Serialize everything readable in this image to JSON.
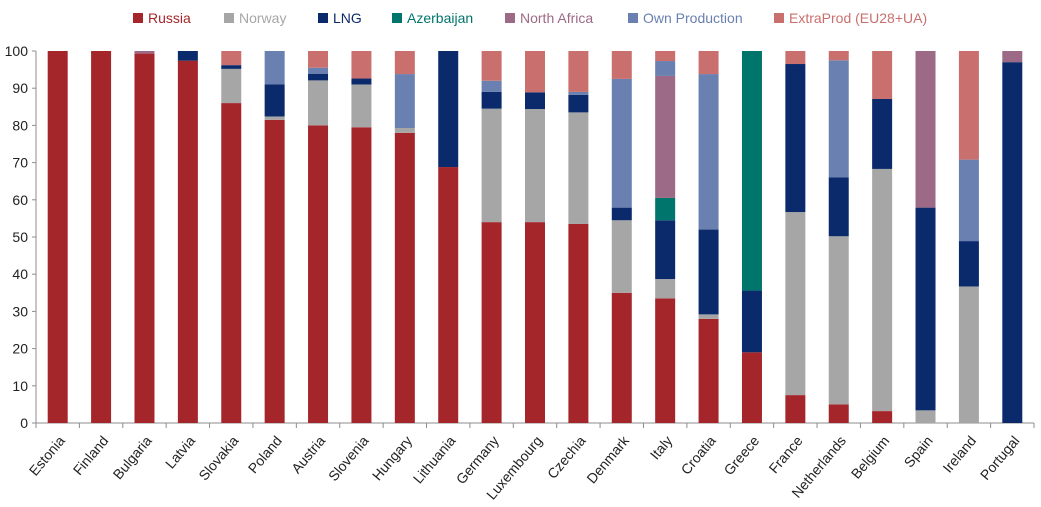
{
  "chart_data": {
    "type": "bar",
    "stacked": true,
    "title": "",
    "xlabel": "",
    "ylabel": "",
    "ylim": [
      0,
      100
    ],
    "y_ticks": [
      0,
      10,
      20,
      30,
      40,
      50,
      60,
      70,
      80,
      90,
      100
    ],
    "grid": false,
    "legend_position": "top",
    "categories": [
      "Estonia",
      "Finland",
      "Bulgaria",
      "Latvia",
      "Slovakia",
      "Poland",
      "Austria",
      "Slovenia",
      "Hungary",
      "Lithuania",
      "Germany",
      "Luxembourg",
      "Czechia",
      "Denmark",
      "Italy",
      "Croatia",
      "Greece",
      "France",
      "Netherlands",
      "Belgium",
      "Spain",
      "Ireland",
      "Portugal"
    ],
    "series": [
      {
        "name": "Russia",
        "color": "#A5262A",
        "values": [
          100,
          100,
          99.3,
          97.4,
          86.0,
          81.5,
          80.0,
          79.5,
          78.0,
          68.8,
          54.0,
          54.0,
          53.5,
          35.0,
          33.5,
          28.0,
          19.0,
          7.5,
          5.0,
          3.2,
          0,
          0,
          0
        ]
      },
      {
        "name": "Norway",
        "color": "#A6A6A6",
        "values": [
          0,
          0,
          0,
          0,
          9.2,
          0.9,
          12.1,
          11.5,
          1.3,
          0,
          30.5,
          30.4,
          30.0,
          19.5,
          5.2,
          1.2,
          0,
          49.2,
          45.2,
          65.1,
          3.4,
          36.7,
          0
        ]
      },
      {
        "name": "LNG",
        "color": "#0B2A6B",
        "values": [
          0,
          0,
          0,
          2.6,
          1.0,
          8.6,
          1.8,
          1.6,
          0,
          31.2,
          4.5,
          4.5,
          4.7,
          3.4,
          15.8,
          22.8,
          16.6,
          39.8,
          15.8,
          18.8,
          54.5,
          12.2,
          97.0
        ]
      },
      {
        "name": "Azerbaijan",
        "color": "#00756C",
        "values": [
          0,
          0,
          0,
          0,
          0,
          0,
          0,
          0,
          0,
          0,
          0,
          0,
          0,
          0,
          6.0,
          0,
          64.4,
          0,
          0,
          0,
          0,
          0,
          0
        ]
      },
      {
        "name": "North Africa",
        "color": "#9C6A86",
        "values": [
          0,
          0,
          0.7,
          0,
          0,
          0,
          0,
          0,
          0,
          0,
          0,
          0,
          0,
          0,
          32.8,
          0,
          0,
          0,
          0,
          0,
          42.1,
          0,
          3.0
        ]
      },
      {
        "name": "Own Production",
        "color": "#6A80B0",
        "values": [
          0,
          0,
          0,
          0,
          0,
          9.0,
          1.6,
          0,
          14.5,
          0,
          3.0,
          0,
          0.8,
          34.6,
          4.0,
          41.8,
          0,
          0,
          31.5,
          0,
          0,
          21.9,
          0
        ]
      },
      {
        "name": "ExtraProd (EU28+UA)",
        "color": "#C9706E",
        "values": [
          0,
          0,
          0,
          0,
          3.8,
          0,
          4.5,
          7.4,
          6.2,
          0,
          8.0,
          11.1,
          11.0,
          7.5,
          2.7,
          6.2,
          0,
          3.5,
          2.5,
          12.9,
          0,
          29.2,
          0
        ]
      }
    ]
  }
}
